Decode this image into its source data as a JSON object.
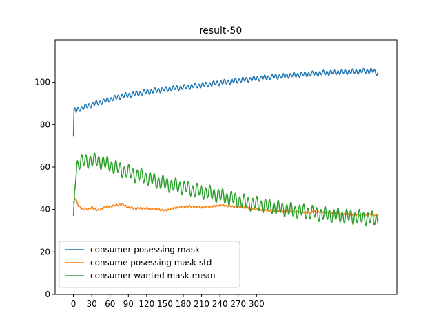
{
  "chart_data": {
    "type": "line",
    "title": "result-50",
    "xlabel": "",
    "ylabel": "",
    "xlim": [
      -30,
      530
    ],
    "ylim": [
      0,
      120
    ],
    "x_ticks": [
      0,
      30,
      60,
      90,
      120,
      150,
      180,
      210,
      240,
      270,
      300
    ],
    "x_tick_labels": [
      "0",
      "30",
      "60",
      "90",
      "120",
      "150",
      "180",
      "210",
      "240",
      "270",
      "300"
    ],
    "y_ticks": [
      0,
      20,
      40,
      60,
      80,
      100
    ],
    "y_tick_labels": [
      "0",
      "20",
      "40",
      "60",
      "80",
      "100"
    ],
    "grid": false,
    "legend_position": "lower-left",
    "series": [
      {
        "name": "consumer posessing mask",
        "color": "#1f77b4",
        "x": [
          0,
          1,
          5,
          10,
          20,
          30,
          40,
          50,
          60,
          80,
          100,
          120,
          140,
          160,
          180,
          200,
          220,
          240,
          260,
          280,
          300,
          320,
          340,
          360,
          380,
          400,
          420,
          440,
          460,
          480,
          490,
          500
        ],
        "values": [
          74.5,
          87.5,
          86.5,
          87.5,
          88.5,
          89.5,
          90.2,
          91.0,
          92.0,
          93.5,
          94.5,
          95.5,
          96.3,
          97.0,
          97.6,
          98.3,
          99.0,
          99.8,
          100.5,
          101.2,
          101.8,
          102.4,
          102.9,
          103.4,
          103.8,
          104.2,
          104.6,
          104.9,
          105.1,
          105.3,
          105.4,
          104.0
        ],
        "oscillation_amplitude": 1.0,
        "oscillation_period": 6
      },
      {
        "name": "consume posessing mask std",
        "color": "#ff7f0e",
        "x": [
          0,
          2,
          5,
          8,
          12,
          16,
          20,
          25,
          30,
          40,
          50,
          60,
          70,
          80,
          90,
          100,
          120,
          140,
          150,
          170,
          190,
          210,
          230,
          240,
          260,
          280,
          300,
          320,
          340,
          360,
          380,
          400,
          420,
          440,
          460,
          480,
          500
        ],
        "values": [
          43.0,
          45.5,
          44.0,
          42.0,
          40.5,
          40.0,
          40.5,
          40.0,
          41.0,
          39.5,
          41.0,
          41.5,
          42.0,
          42.5,
          41.0,
          40.5,
          40.5,
          40.0,
          39.5,
          41.0,
          41.5,
          41.0,
          41.5,
          42.0,
          41.5,
          41.0,
          40.0,
          39.5,
          39.0,
          39.0,
          38.5,
          39.0,
          38.5,
          38.0,
          37.5,
          37.5,
          37.5
        ],
        "oscillation_amplitude": 0.4,
        "oscillation_period": 5
      },
      {
        "name": "consumer wanted mask mean",
        "color": "#2ca02c",
        "x": [
          0,
          3,
          6,
          10,
          20,
          30,
          40,
          50,
          60,
          80,
          100,
          120,
          140,
          160,
          180,
          200,
          220,
          240,
          260,
          280,
          300,
          320,
          340,
          360,
          380,
          400,
          420,
          440,
          460,
          480,
          500
        ],
        "values": [
          37.0,
          55.0,
          61.0,
          62.0,
          63.0,
          63.0,
          63.0,
          62.0,
          61.0,
          58.5,
          56.5,
          55.0,
          53.0,
          51.5,
          50.5,
          49.0,
          48.0,
          46.5,
          45.0,
          43.5,
          42.5,
          41.5,
          40.5,
          39.5,
          39.0,
          38.0,
          37.5,
          37.0,
          36.5,
          36.0,
          35.0
        ],
        "oscillation_amplitude": 2.8,
        "oscillation_period": 7
      }
    ]
  }
}
